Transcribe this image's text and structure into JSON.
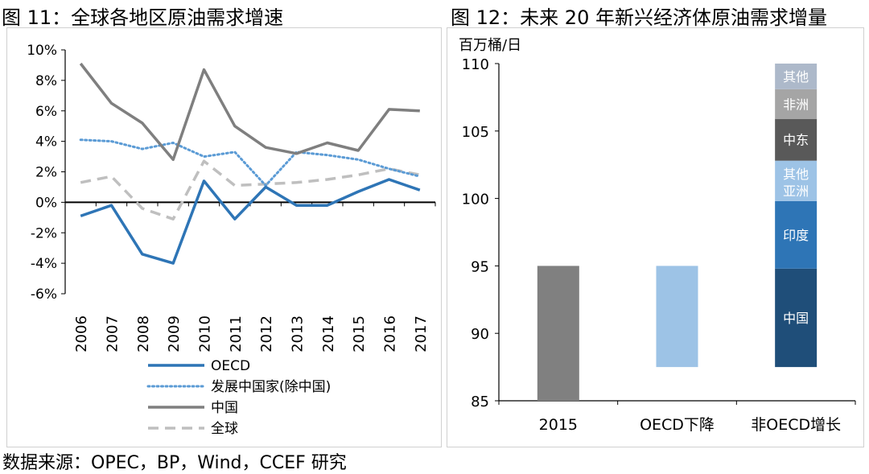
{
  "figure_left": {
    "title": "图 11：全球各地区原油需求增速"
  },
  "figure_right": {
    "title": "图 12：未来 20 年新兴经济体原油需求增量"
  },
  "source": "数据来源：OPEC，BP，Wind，CCEF 研究",
  "colors": {
    "oecd": "#2e75b6",
    "developing": "#5b9bd5",
    "china": "#7f7f7f",
    "global": "#bfbfbf",
    "bar2015": "#808080",
    "oecd_decline": "#9dc3e6",
    "seg_china": "#1f4e79",
    "seg_india": "#2e75b6",
    "seg_other_asia": "#9dc3e6",
    "seg_middle_east": "#595959",
    "seg_africa": "#a5a5a5",
    "seg_other": "#adb9ca"
  },
  "chart_data": [
    {
      "type": "line",
      "title": "全球各地区原油需求增速",
      "x": [
        "2006",
        "2007",
        "2008",
        "2009",
        "2010",
        "2011",
        "2012",
        "2013",
        "2014",
        "2015",
        "2016",
        "2017"
      ],
      "ylim": [
        -6,
        10
      ],
      "yticks": [
        "-6%",
        "-4%",
        "-2%",
        "0%",
        "2%",
        "4%",
        "6%",
        "8%",
        "10%"
      ],
      "series": [
        {
          "name": "OECD",
          "style": "solid",
          "values": [
            -0.9,
            -0.2,
            -3.4,
            -4.0,
            1.4,
            -1.1,
            1.0,
            -0.2,
            -0.2,
            0.7,
            1.5,
            0.8
          ]
        },
        {
          "name": "发展中国家(除中国)",
          "style": "dotted",
          "values": [
            4.1,
            4.0,
            3.5,
            3.9,
            3.0,
            3.3,
            1.1,
            3.3,
            3.1,
            2.8,
            2.2,
            1.7
          ]
        },
        {
          "name": "中国",
          "style": "solid",
          "values": [
            9.1,
            6.5,
            5.2,
            2.8,
            8.7,
            5.0,
            3.6,
            3.2,
            3.9,
            3.4,
            6.1,
            6.0
          ]
        },
        {
          "name": "全球",
          "style": "dashed",
          "values": [
            1.3,
            1.7,
            -0.4,
            -1.1,
            2.7,
            1.1,
            1.2,
            1.3,
            1.5,
            1.8,
            2.2,
            1.8
          ]
        }
      ],
      "legend": [
        "OECD",
        "发展中国家(除中国)",
        "中国",
        "全球"
      ]
    },
    {
      "type": "bar",
      "title": "未来 20 年新兴经济体原油需求增量",
      "ylabel": "百万桶/日",
      "ylim": [
        85,
        110
      ],
      "yticks": [
        "85",
        "90",
        "95",
        "100",
        "105",
        "110"
      ],
      "categories": [
        "2015",
        "OECD下降",
        "非OECD增长"
      ],
      "bars": [
        {
          "category": "2015",
          "bottom": 85,
          "top": 95
        },
        {
          "category": "OECD下降",
          "bottom": 87.5,
          "top": 95
        },
        {
          "category": "非OECD增长",
          "segments": [
            {
              "label": "中国",
              "bottom": 87.5,
              "top": 94.8
            },
            {
              "label": "印度",
              "bottom": 94.8,
              "top": 99.8
            },
            {
              "label": "其他亚洲",
              "line1": "其他",
              "line2": "亚洲",
              "bottom": 99.8,
              "top": 102.8
            },
            {
              "label": "中东",
              "bottom": 102.8,
              "top": 105.9
            },
            {
              "label": "非洲",
              "bottom": 105.9,
              "top": 108.1
            },
            {
              "label": "其他",
              "bottom": 108.1,
              "top": 110.0
            }
          ]
        }
      ]
    }
  ]
}
